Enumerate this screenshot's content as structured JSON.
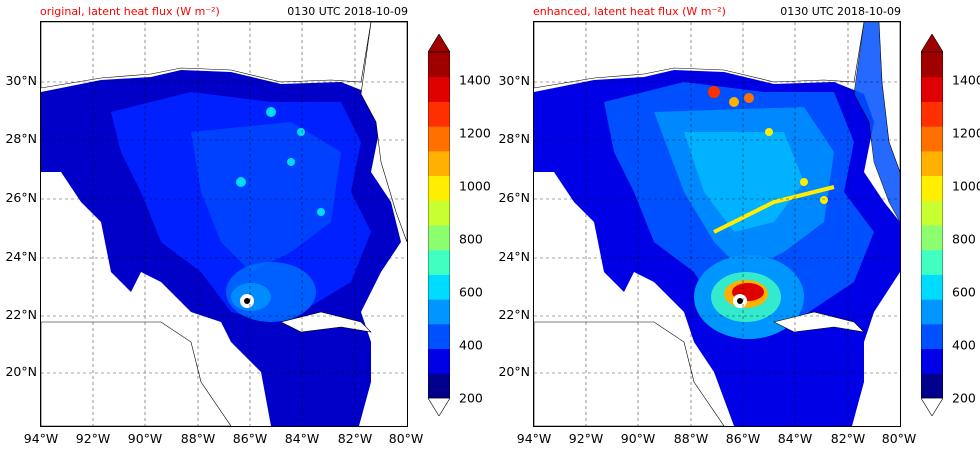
{
  "panels": [
    {
      "title_left": "original, latent heat flux (W m⁻²)",
      "title_right": "0130 UTC 2018-10-09"
    },
    {
      "title_left": "enhanced, latent heat flux (W m⁻²)",
      "title_right": "0130 UTC 2018-10-09"
    }
  ],
  "lat_ticks": [
    "30°N",
    "28°N",
    "26°N",
    "24°N",
    "22°N",
    "20°N"
  ],
  "lon_ticks": [
    "94°W",
    "92°W",
    "90°W",
    "88°W",
    "86°W",
    "84°W",
    "82°W",
    "80°W"
  ],
  "colorbar": {
    "labels": [
      "1400",
      "1200",
      "1000",
      "800",
      "600",
      "400",
      "200"
    ],
    "colors": [
      "#00008c",
      "#0000e6",
      "#0050ff",
      "#0096ff",
      "#00dcff",
      "#40ffc0",
      "#8cff70",
      "#c8ff30",
      "#ffee00",
      "#ffb000",
      "#ff7000",
      "#ff3000",
      "#e00000",
      "#a00000"
    ]
  },
  "map_colors": {
    "land": "#ffffff",
    "sea_dark": "#0000c8",
    "sea_mid": "#0020ff",
    "sea_light": "#0070ff",
    "eye": "#000000"
  }
}
